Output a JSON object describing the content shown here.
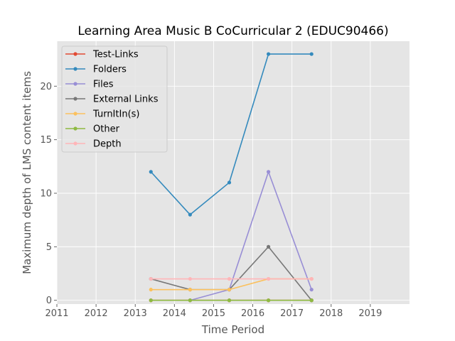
{
  "chart_data": {
    "type": "line",
    "title": "Learning Area Music B CoCurricular 2 (EDUC90466)",
    "xlabel": "Time Period",
    "ylabel": "Maximum depth of LMS content items",
    "xlim": [
      2011,
      2020
    ],
    "ylim": [
      -0.35,
      24.2
    ],
    "x_ticks": [
      2011,
      2012,
      2013,
      2014,
      2015,
      2016,
      2017,
      2018,
      2019
    ],
    "y_ticks": [
      0,
      5,
      10,
      15,
      20
    ],
    "grid": true,
    "legend_position": "top-left",
    "x": [
      2013.4,
      2014.4,
      2015.4,
      2016.4,
      2017.5
    ],
    "series": [
      {
        "name": "Test-Links",
        "color": "#E24A33",
        "values": [
          0,
          0,
          0,
          0,
          0
        ]
      },
      {
        "name": "Folders",
        "color": "#348ABD",
        "values": [
          12,
          8,
          11,
          23,
          23
        ]
      },
      {
        "name": "Files",
        "color": "#988ED5",
        "values": [
          null,
          0,
          1,
          12,
          1
        ]
      },
      {
        "name": "External Links",
        "color": "#777777",
        "values": [
          2,
          1,
          1,
          5,
          0
        ]
      },
      {
        "name": "TurnItIn(s)",
        "color": "#FBC15E",
        "values": [
          1,
          1,
          1,
          2,
          2
        ]
      },
      {
        "name": "Other",
        "color": "#8EBA42",
        "values": [
          0,
          0,
          0,
          0,
          0
        ]
      },
      {
        "name": "Depth",
        "color": "#FFB5B8",
        "values": [
          2,
          2,
          2,
          2,
          2
        ]
      }
    ]
  }
}
